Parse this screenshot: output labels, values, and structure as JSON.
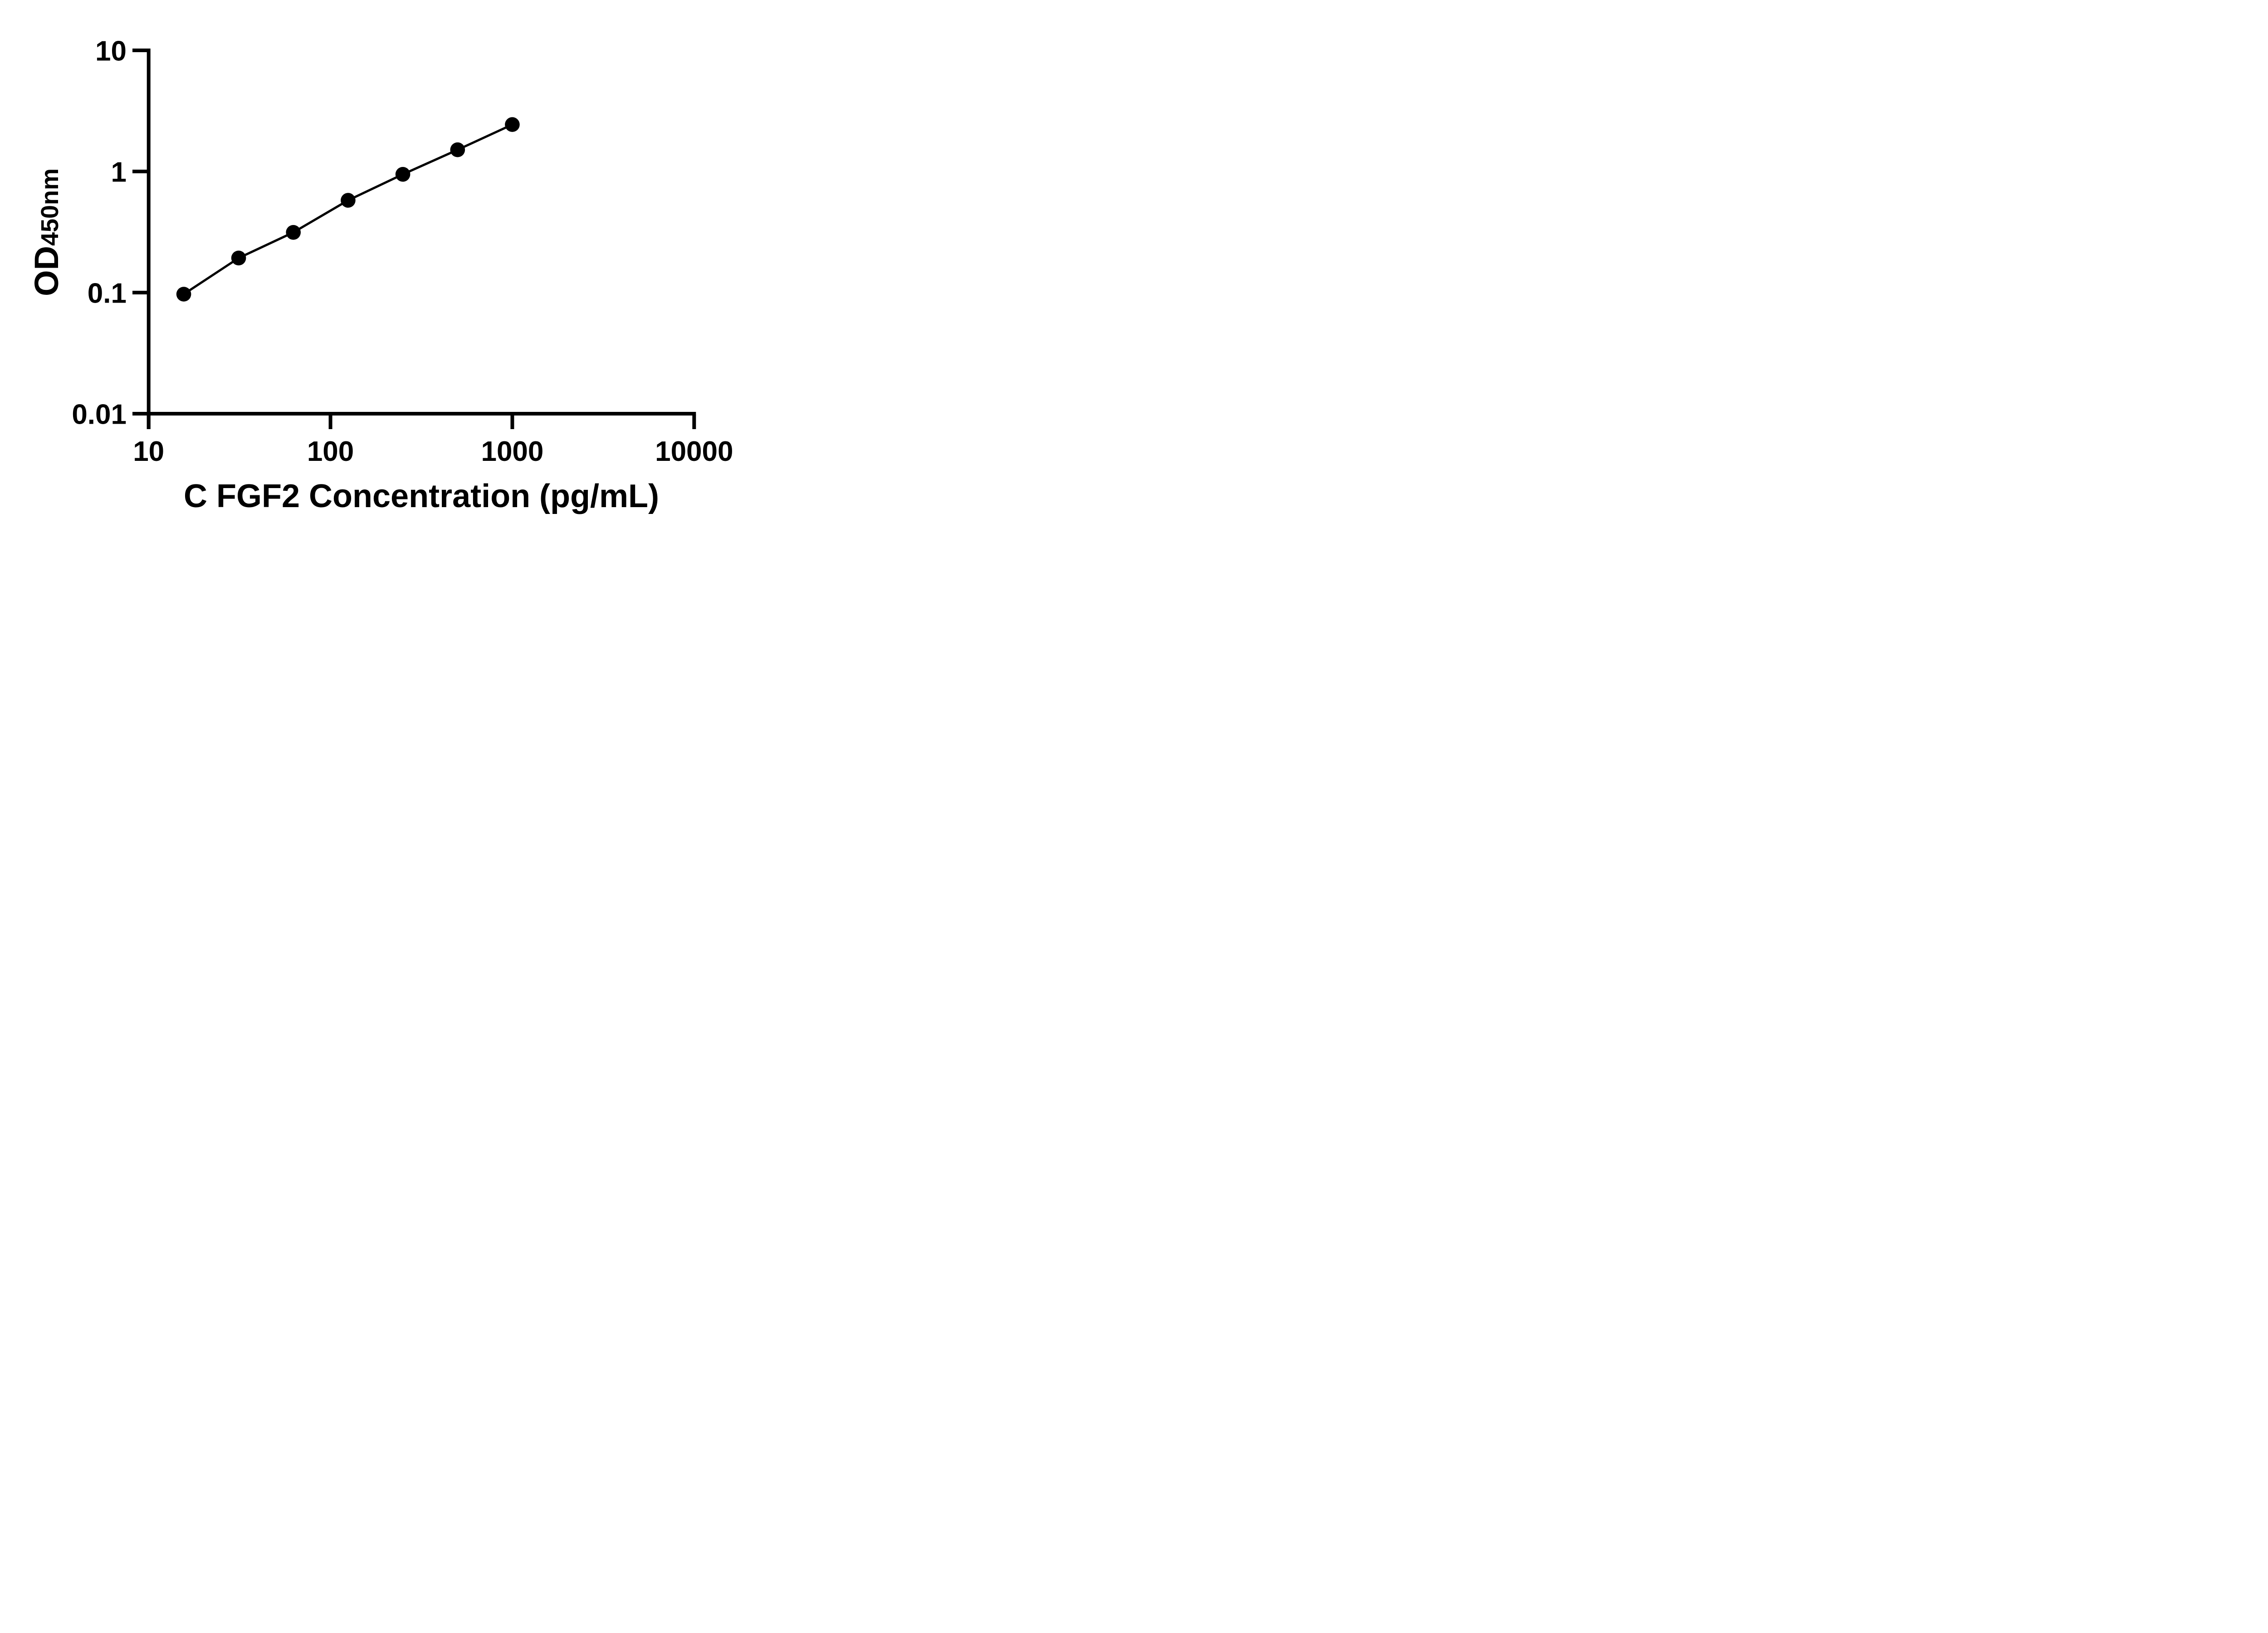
{
  "figure": {
    "background": "#ffffff",
    "ink": "#000000"
  },
  "chart_data": {
    "type": "line",
    "subtype": "xy-points-connected-by-straight-segments",
    "title": "",
    "xlabel": "C FGF2 Concentration (pg/mL)",
    "ylabel_main": "OD",
    "ylabel_sub": "450nm",
    "x_scale": "log10",
    "y_scale": "log10",
    "xlim": [
      10,
      10000
    ],
    "ylim": [
      0.01,
      10
    ],
    "x_tick_values": [
      10,
      100,
      1000,
      10000
    ],
    "x_tick_labels": [
      "10",
      "100",
      "1000",
      "10000"
    ],
    "y_tick_values": [
      10,
      1,
      0.1,
      0.01
    ],
    "y_tick_labels": [
      "10",
      "1",
      "0.1",
      "0.01"
    ],
    "grid": false,
    "legend": false,
    "series": [
      {
        "marker": "filled-circle",
        "color": "#000000",
        "points": [
          {
            "x": 15.6,
            "y": 0.097
          },
          {
            "x": 31.25,
            "y": 0.193
          },
          {
            "x": 62.5,
            "y": 0.314
          },
          {
            "x": 125,
            "y": 0.578
          },
          {
            "x": 250,
            "y": 0.947
          },
          {
            "x": 500,
            "y": 1.51
          },
          {
            "x": 1000,
            "y": 2.44
          }
        ]
      }
    ]
  }
}
